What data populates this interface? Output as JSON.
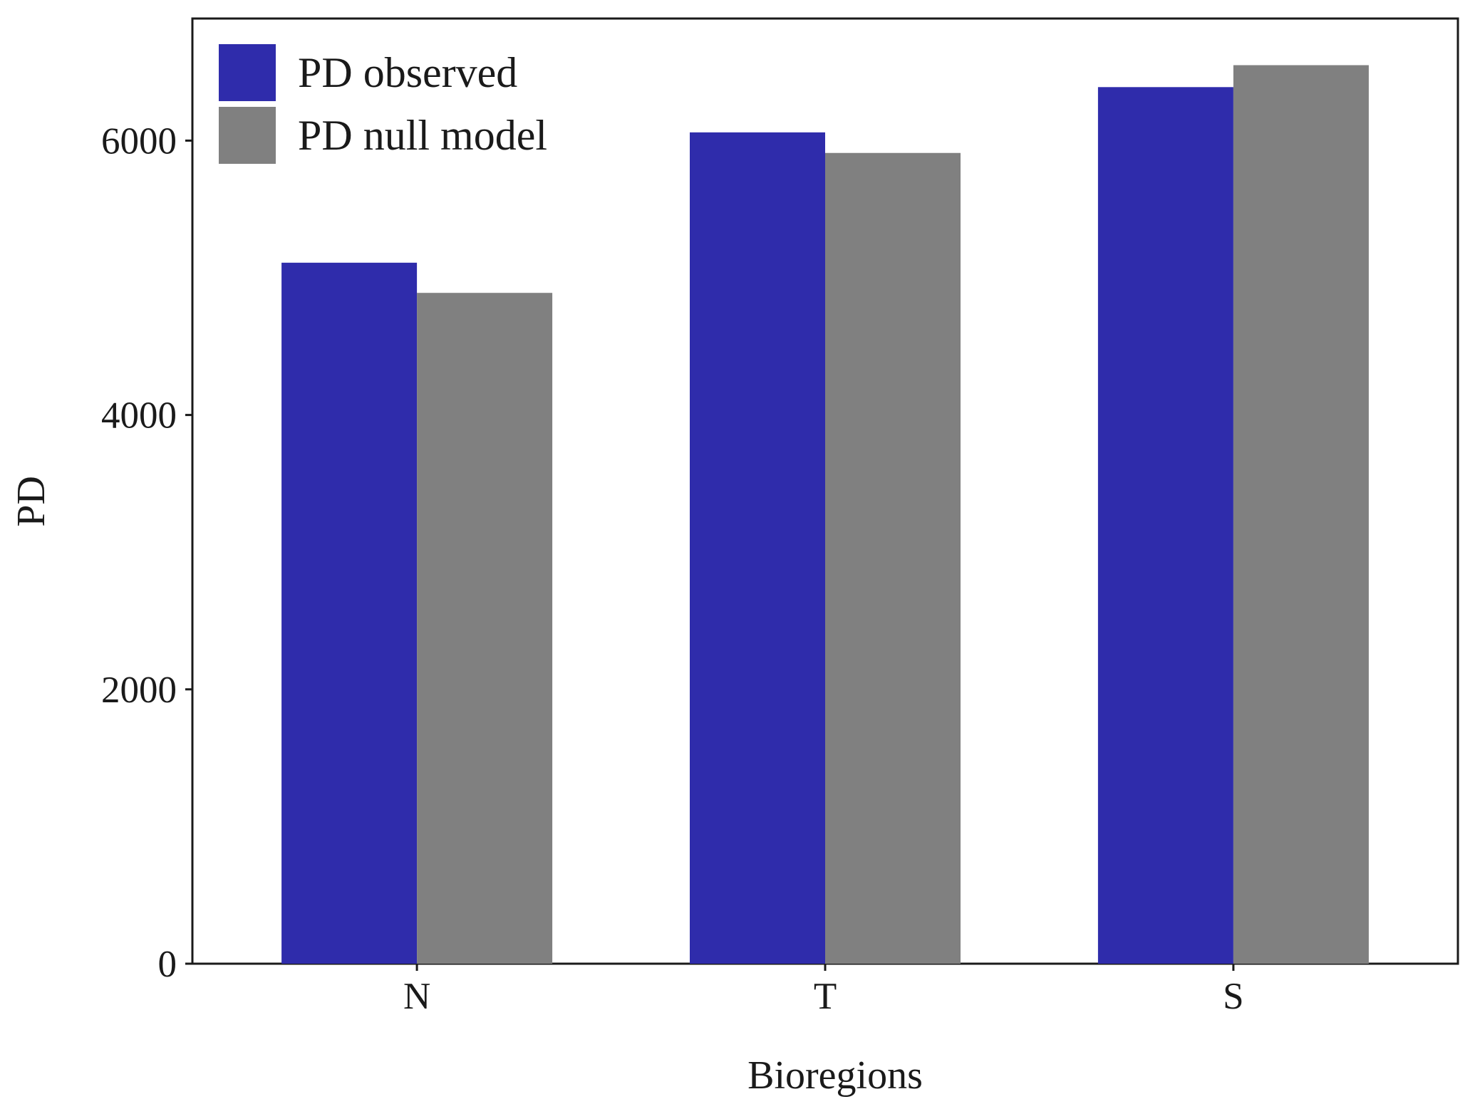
{
  "chart_data": {
    "type": "bar",
    "title": "",
    "xlabel": "Bioregions",
    "ylabel": "PD",
    "categories": [
      "N",
      "T",
      "S"
    ],
    "series": [
      {
        "name": "PD observed",
        "values": [
          5110,
          6060,
          6390
        ],
        "color": "#2f2cab"
      },
      {
        "name": "PD null model",
        "values": [
          4890,
          5910,
          6550
        ],
        "color": "#808080"
      }
    ],
    "ylim": [
      0,
      6890
    ],
    "yticks": [
      0,
      2000,
      4000,
      6000
    ],
    "ytick_labels": [
      "0",
      "2000",
      "4000",
      "6000"
    ],
    "grid": false,
    "legend_position": "top-left"
  }
}
